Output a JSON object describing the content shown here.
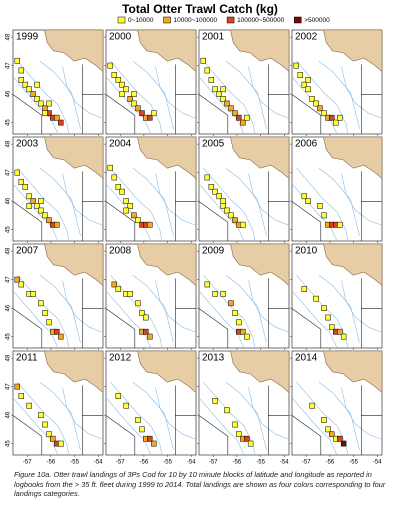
{
  "chart_data": {
    "type": "map-grid",
    "title": "Total Otter Trawl Catch (kg)",
    "legend": [
      {
        "label": "0~10000",
        "color": "#ffff33"
      },
      {
        "label": "10000~100000",
        "color": "#f5a623"
      },
      {
        "label": "100000~500000",
        "color": "#d9441c"
      },
      {
        "label": ">500000",
        "color": "#7a0a0a"
      }
    ],
    "xlim": [
      -57.6,
      -53.8
    ],
    "ylim": [
      44.6,
      48.25
    ],
    "xticks": [
      -57,
      -56,
      -55,
      -54
    ],
    "yticks": [
      45,
      46,
      47,
      48
    ],
    "panels": [
      {
        "year": "1999",
        "cells": [
          [
            -57.25,
            46.5,
            0
          ],
          [
            -57.08,
            46.33,
            0
          ],
          [
            -56.92,
            46.17,
            0
          ],
          [
            -56.75,
            46.0,
            1
          ],
          [
            -56.58,
            45.83,
            0
          ],
          [
            -56.42,
            45.67,
            0
          ],
          [
            -56.25,
            45.5,
            1
          ],
          [
            -56.08,
            45.33,
            2
          ],
          [
            -55.92,
            45.17,
            2
          ],
          [
            -55.75,
            45.17,
            1
          ],
          [
            -56.25,
            45.33,
            0
          ],
          [
            -57.42,
            47.17,
            0
          ],
          [
            -57.25,
            46.83,
            0
          ],
          [
            -56.58,
            46.33,
            0
          ],
          [
            -56.08,
            45.67,
            0
          ],
          [
            -55.58,
            45.0,
            2
          ]
        ]
      },
      {
        "year": "2000",
        "cells": [
          [
            -57.42,
            47.0,
            0
          ],
          [
            -57.25,
            46.67,
            0
          ],
          [
            -57.08,
            46.5,
            0
          ],
          [
            -56.92,
            46.33,
            0
          ],
          [
            -56.75,
            46.17,
            0
          ],
          [
            -56.58,
            45.83,
            1
          ],
          [
            -56.42,
            45.67,
            0
          ],
          [
            -56.25,
            45.5,
            1
          ],
          [
            -56.08,
            45.33,
            2
          ],
          [
            -55.92,
            45.17,
            1
          ],
          [
            -55.75,
            45.17,
            2
          ],
          [
            -56.92,
            46.0,
            0
          ],
          [
            -56.42,
            46.0,
            0
          ],
          [
            -55.58,
            45.33,
            0
          ]
        ]
      },
      {
        "year": "2001",
        "cells": [
          [
            -57.42,
            47.17,
            0
          ],
          [
            -57.25,
            46.83,
            0
          ],
          [
            -57.08,
            46.5,
            0
          ],
          [
            -56.92,
            46.17,
            0
          ],
          [
            -56.75,
            46.0,
            0
          ],
          [
            -56.58,
            45.83,
            0
          ],
          [
            -56.42,
            45.67,
            1
          ],
          [
            -56.25,
            45.5,
            1
          ],
          [
            -56.08,
            45.33,
            1
          ],
          [
            -55.92,
            45.17,
            2
          ],
          [
            -55.75,
            45.0,
            1
          ],
          [
            -56.58,
            46.17,
            0
          ],
          [
            -55.58,
            45.17,
            0
          ]
        ]
      },
      {
        "year": "2002",
        "cells": [
          [
            -57.42,
            47.0,
            0
          ],
          [
            -57.25,
            46.67,
            0
          ],
          [
            -57.08,
            46.33,
            0
          ],
          [
            -56.92,
            46.17,
            0
          ],
          [
            -56.75,
            45.83,
            0
          ],
          [
            -56.58,
            45.67,
            0
          ],
          [
            -56.42,
            45.5,
            1
          ],
          [
            -56.25,
            45.33,
            0
          ],
          [
            -56.08,
            45.17,
            1
          ],
          [
            -55.92,
            45.17,
            2
          ],
          [
            -55.75,
            45.0,
            0
          ],
          [
            -56.92,
            46.5,
            0
          ],
          [
            -55.58,
            45.17,
            0
          ]
        ]
      },
      {
        "year": "2003",
        "cells": [
          [
            -57.42,
            47.0,
            0
          ],
          [
            -57.25,
            46.67,
            0
          ],
          [
            -57.08,
            46.5,
            0
          ],
          [
            -56.92,
            46.17,
            0
          ],
          [
            -56.75,
            46.0,
            1
          ],
          [
            -56.58,
            45.83,
            0
          ],
          [
            -56.42,
            45.67,
            0
          ],
          [
            -56.25,
            45.5,
            0
          ],
          [
            -56.08,
            45.33,
            1
          ],
          [
            -55.92,
            45.17,
            2
          ],
          [
            -55.75,
            45.17,
            1
          ],
          [
            -56.92,
            45.83,
            0
          ],
          [
            -56.42,
            46.0,
            0
          ]
        ]
      },
      {
        "year": "2004",
        "cells": [
          [
            -57.42,
            47.17,
            0
          ],
          [
            -57.25,
            46.83,
            0
          ],
          [
            -57.08,
            46.5,
            0
          ],
          [
            -56.92,
            46.33,
            0
          ],
          [
            -56.75,
            46.0,
            0
          ],
          [
            -56.58,
            45.83,
            0
          ],
          [
            -56.42,
            45.5,
            1
          ],
          [
            -56.25,
            45.33,
            0
          ],
          [
            -56.08,
            45.17,
            2
          ],
          [
            -55.92,
            45.17,
            2
          ],
          [
            -55.75,
            45.17,
            1
          ],
          [
            -56.75,
            45.67,
            0
          ]
        ]
      },
      {
        "year": "2005",
        "cells": [
          [
            -57.25,
            46.83,
            0
          ],
          [
            -57.08,
            46.5,
            0
          ],
          [
            -56.92,
            46.33,
            0
          ],
          [
            -56.75,
            46.17,
            0
          ],
          [
            -56.58,
            45.83,
            0
          ],
          [
            -56.42,
            45.67,
            0
          ],
          [
            -56.25,
            45.5,
            0
          ],
          [
            -56.08,
            45.33,
            1
          ],
          [
            -55.92,
            45.17,
            1
          ],
          [
            -55.75,
            45.17,
            0
          ],
          [
            -56.58,
            46.0,
            0
          ]
        ]
      },
      {
        "year": "2006",
        "cells": [
          [
            -57.08,
            46.17,
            0
          ],
          [
            -56.92,
            46.0,
            0
          ],
          [
            -56.42,
            45.83,
            0
          ],
          [
            -56.25,
            45.5,
            0
          ],
          [
            -56.08,
            45.17,
            1
          ],
          [
            -55.92,
            45.17,
            2
          ],
          [
            -55.75,
            45.17,
            2
          ],
          [
            -55.58,
            45.17,
            0
          ]
        ]
      },
      {
        "year": "2007",
        "cells": [
          [
            -57.42,
            47.0,
            1
          ],
          [
            -57.25,
            46.83,
            0
          ],
          [
            -56.92,
            46.5,
            0
          ],
          [
            -56.75,
            46.5,
            0
          ],
          [
            -56.42,
            46.17,
            0
          ],
          [
            -56.25,
            45.83,
            0
          ],
          [
            -56.08,
            45.5,
            0
          ],
          [
            -55.92,
            45.17,
            1
          ],
          [
            -55.75,
            45.17,
            2
          ],
          [
            -55.58,
            45.0,
            1
          ]
        ]
      },
      {
        "year": "2008",
        "cells": [
          [
            -57.25,
            46.83,
            1
          ],
          [
            -57.08,
            46.67,
            0
          ],
          [
            -56.75,
            46.5,
            0
          ],
          [
            -56.58,
            46.5,
            0
          ],
          [
            -56.25,
            46.17,
            0
          ],
          [
            -56.08,
            45.83,
            0
          ],
          [
            -55.92,
            45.67,
            0
          ],
          [
            -56.08,
            45.17,
            1
          ],
          [
            -55.92,
            45.17,
            2
          ],
          [
            -55.75,
            45.0,
            1
          ]
        ]
      },
      {
        "year": "2009",
        "cells": [
          [
            -57.25,
            46.83,
            0
          ],
          [
            -56.92,
            46.5,
            0
          ],
          [
            -56.58,
            46.5,
            0
          ],
          [
            -56.25,
            46.17,
            1
          ],
          [
            -56.08,
            45.83,
            0
          ],
          [
            -55.92,
            45.5,
            0
          ],
          [
            -55.92,
            45.17,
            2
          ],
          [
            -55.75,
            45.17,
            1
          ],
          [
            -55.58,
            45.0,
            0
          ]
        ]
      },
      {
        "year": "2010",
        "cells": [
          [
            -57.08,
            46.67,
            0
          ],
          [
            -56.58,
            46.33,
            0
          ],
          [
            -56.25,
            46.0,
            0
          ],
          [
            -56.08,
            45.67,
            0
          ],
          [
            -55.92,
            45.33,
            0
          ],
          [
            -55.75,
            45.17,
            2
          ],
          [
            -55.58,
            45.17,
            1
          ],
          [
            -55.42,
            45.0,
            0
          ]
        ]
      },
      {
        "year": "2011",
        "cells": [
          [
            -57.42,
            47.0,
            1
          ],
          [
            -57.25,
            46.67,
            0
          ],
          [
            -56.92,
            46.33,
            0
          ],
          [
            -56.42,
            46.0,
            0
          ],
          [
            -56.25,
            45.67,
            0
          ],
          [
            -56.08,
            45.33,
            0
          ],
          [
            -55.92,
            45.17,
            1
          ],
          [
            -55.75,
            45.0,
            2
          ],
          [
            -55.58,
            45.0,
            0
          ]
        ]
      },
      {
        "year": "2012",
        "cells": [
          [
            -57.08,
            46.67,
            0
          ],
          [
            -56.75,
            46.33,
            0
          ],
          [
            -56.25,
            45.83,
            0
          ],
          [
            -56.08,
            45.5,
            0
          ],
          [
            -55.92,
            45.17,
            1
          ],
          [
            -55.75,
            45.17,
            2
          ],
          [
            -55.58,
            45.0,
            1
          ]
        ]
      },
      {
        "year": "2013",
        "cells": [
          [
            -56.92,
            46.5,
            0
          ],
          [
            -56.42,
            46.17,
            0
          ],
          [
            -56.08,
            45.67,
            0
          ],
          [
            -55.92,
            45.33,
            0
          ],
          [
            -55.75,
            45.17,
            1
          ],
          [
            -55.58,
            45.17,
            2
          ],
          [
            -55.42,
            45.0,
            0
          ]
        ]
      },
      {
        "year": "2014",
        "cells": [
          [
            -56.75,
            46.33,
            0
          ],
          [
            -56.25,
            45.83,
            0
          ],
          [
            -56.08,
            45.5,
            0
          ],
          [
            -55.92,
            45.33,
            1
          ],
          [
            -55.75,
            45.17,
            0
          ],
          [
            -55.58,
            45.17,
            2
          ],
          [
            -55.42,
            45.0,
            3
          ]
        ]
      }
    ],
    "caption": "Figure 10a. Otter trawl landings of 3Ps Cod for 10 by 10 minute blocks of latitude and longitude as reported in logbooks from the > 35 ft. fleet during 1999 to 2014. Total landings are shown as four colors corresponding to four landings categories."
  }
}
